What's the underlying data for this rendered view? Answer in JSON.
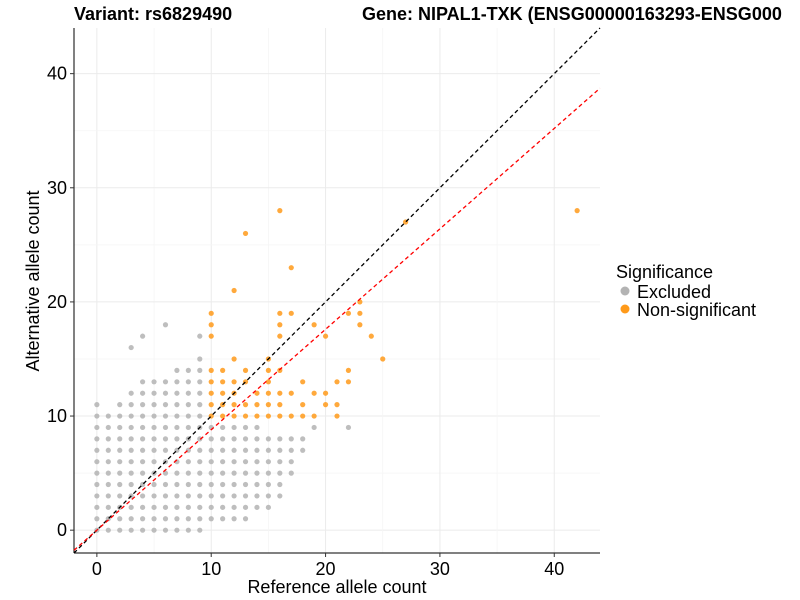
{
  "chart_data": {
    "type": "scatter",
    "title_left": "Variant: rs6829490",
    "title_right": "Gene: NIPAL1-TXK (ENSG00000163293-ENSG000",
    "xlabel": "Reference allele count",
    "ylabel": "Alternative allele count",
    "xlim": [
      -2,
      44
    ],
    "ylim": [
      -2,
      44
    ],
    "xticks": [
      0,
      10,
      20,
      30,
      40
    ],
    "yticks": [
      0,
      10,
      20,
      30,
      40
    ],
    "grid": true,
    "legend": {
      "title": "Significance",
      "placement": "right",
      "entries": [
        {
          "label": "Excluded",
          "color": "#b3b3b3"
        },
        {
          "label": "Non-significant",
          "color": "#ff9a1a"
        }
      ]
    },
    "reference_lines": [
      {
        "name": "y = x",
        "slope": 1.0,
        "intercept": 0,
        "color": "#000000",
        "dash": true
      },
      {
        "name": "fitted",
        "slope": 0.88,
        "intercept": 0,
        "color": "#ff0000",
        "dash": true
      }
    ],
    "series": [
      {
        "name": "Excluded",
        "color": "#b3b3b3",
        "points": [
          [
            0,
            11
          ],
          [
            0,
            10
          ],
          [
            0,
            9
          ],
          [
            0,
            8
          ],
          [
            0,
            7
          ],
          [
            0,
            6
          ],
          [
            0,
            5
          ],
          [
            0,
            4
          ],
          [
            0,
            3
          ],
          [
            0,
            2
          ],
          [
            0,
            1
          ],
          [
            0,
            0
          ],
          [
            1,
            10
          ],
          [
            1,
            9
          ],
          [
            1,
            8
          ],
          [
            1,
            7
          ],
          [
            1,
            6
          ],
          [
            1,
            5
          ],
          [
            1,
            4
          ],
          [
            1,
            3
          ],
          [
            1,
            2
          ],
          [
            1,
            1
          ],
          [
            1,
            0
          ],
          [
            2,
            11
          ],
          [
            2,
            10
          ],
          [
            2,
            9
          ],
          [
            2,
            8
          ],
          [
            2,
            7
          ],
          [
            2,
            6
          ],
          [
            2,
            5
          ],
          [
            2,
            4
          ],
          [
            2,
            3
          ],
          [
            2,
            2
          ],
          [
            2,
            1
          ],
          [
            2,
            0
          ],
          [
            3,
            16
          ],
          [
            3,
            12
          ],
          [
            3,
            11
          ],
          [
            3,
            10
          ],
          [
            3,
            9
          ],
          [
            3,
            8
          ],
          [
            3,
            7
          ],
          [
            3,
            6
          ],
          [
            3,
            5
          ],
          [
            3,
            4
          ],
          [
            3,
            3
          ],
          [
            3,
            2
          ],
          [
            3,
            1
          ],
          [
            3,
            0
          ],
          [
            4,
            17
          ],
          [
            4,
            13
          ],
          [
            4,
            12
          ],
          [
            4,
            11
          ],
          [
            4,
            10
          ],
          [
            4,
            9
          ],
          [
            4,
            8
          ],
          [
            4,
            7
          ],
          [
            4,
            6
          ],
          [
            4,
            5
          ],
          [
            4,
            4
          ],
          [
            4,
            3
          ],
          [
            4,
            2
          ],
          [
            4,
            1
          ],
          [
            4,
            0
          ],
          [
            5,
            13
          ],
          [
            5,
            12
          ],
          [
            5,
            11
          ],
          [
            5,
            10
          ],
          [
            5,
            9
          ],
          [
            5,
            8
          ],
          [
            5,
            7
          ],
          [
            5,
            6
          ],
          [
            5,
            5
          ],
          [
            5,
            4
          ],
          [
            5,
            3
          ],
          [
            5,
            2
          ],
          [
            5,
            1
          ],
          [
            5,
            0
          ],
          [
            6,
            18
          ],
          [
            6,
            13
          ],
          [
            6,
            12
          ],
          [
            6,
            11
          ],
          [
            6,
            10
          ],
          [
            6,
            9
          ],
          [
            6,
            8
          ],
          [
            6,
            7
          ],
          [
            6,
            6
          ],
          [
            6,
            5
          ],
          [
            6,
            4
          ],
          [
            6,
            3
          ],
          [
            6,
            2
          ],
          [
            6,
            1
          ],
          [
            6,
            0
          ],
          [
            7,
            14
          ],
          [
            7,
            13
          ],
          [
            7,
            12
          ],
          [
            7,
            11
          ],
          [
            7,
            10
          ],
          [
            7,
            9
          ],
          [
            7,
            8
          ],
          [
            7,
            7
          ],
          [
            7,
            6
          ],
          [
            7,
            5
          ],
          [
            7,
            4
          ],
          [
            7,
            3
          ],
          [
            7,
            2
          ],
          [
            7,
            1
          ],
          [
            7,
            0
          ],
          [
            8,
            14
          ],
          [
            8,
            13
          ],
          [
            8,
            12
          ],
          [
            8,
            11
          ],
          [
            8,
            10
          ],
          [
            8,
            9
          ],
          [
            8,
            8
          ],
          [
            8,
            7
          ],
          [
            8,
            6
          ],
          [
            8,
            5
          ],
          [
            8,
            4
          ],
          [
            8,
            3
          ],
          [
            8,
            2
          ],
          [
            8,
            1
          ],
          [
            8,
            0
          ],
          [
            9,
            17
          ],
          [
            9,
            15
          ],
          [
            9,
            14
          ],
          [
            9,
            13
          ],
          [
            9,
            12
          ],
          [
            9,
            11
          ],
          [
            9,
            10
          ],
          [
            9,
            9
          ],
          [
            9,
            8
          ],
          [
            9,
            7
          ],
          [
            9,
            6
          ],
          [
            9,
            5
          ],
          [
            9,
            4
          ],
          [
            9,
            3
          ],
          [
            9,
            2
          ],
          [
            9,
            1
          ],
          [
            9,
            0
          ],
          [
            10,
            9
          ],
          [
            10,
            8
          ],
          [
            10,
            7
          ],
          [
            10,
            6
          ],
          [
            10,
            5
          ],
          [
            10,
            4
          ],
          [
            10,
            3
          ],
          [
            10,
            2
          ],
          [
            10,
            1
          ],
          [
            11,
            9
          ],
          [
            11,
            8
          ],
          [
            11,
            7
          ],
          [
            11,
            6
          ],
          [
            11,
            5
          ],
          [
            11,
            4
          ],
          [
            11,
            3
          ],
          [
            11,
            2
          ],
          [
            11,
            1
          ],
          [
            12,
            9
          ],
          [
            12,
            8
          ],
          [
            12,
            7
          ],
          [
            12,
            6
          ],
          [
            12,
            5
          ],
          [
            12,
            4
          ],
          [
            12,
            3
          ],
          [
            12,
            2
          ],
          [
            12,
            1
          ],
          [
            13,
            9
          ],
          [
            13,
            8
          ],
          [
            13,
            7
          ],
          [
            13,
            6
          ],
          [
            13,
            5
          ],
          [
            13,
            4
          ],
          [
            13,
            3
          ],
          [
            13,
            2
          ],
          [
            14,
            9
          ],
          [
            14,
            8
          ],
          [
            14,
            7
          ],
          [
            14,
            6
          ],
          [
            14,
            5
          ],
          [
            14,
            4
          ],
          [
            14,
            3
          ],
          [
            14,
            2
          ],
          [
            15,
            8
          ],
          [
            15,
            7
          ],
          [
            15,
            6
          ],
          [
            15,
            5
          ],
          [
            15,
            4
          ],
          [
            15,
            3
          ],
          [
            15,
            2
          ],
          [
            16,
            8
          ],
          [
            16,
            7
          ],
          [
            16,
            6
          ],
          [
            16,
            5
          ],
          [
            16,
            4
          ],
          [
            16,
            3
          ],
          [
            17,
            8
          ],
          [
            17,
            7
          ],
          [
            17,
            6
          ],
          [
            17,
            5
          ],
          [
            18,
            8
          ],
          [
            18,
            7
          ],
          [
            19,
            9
          ],
          [
            22,
            9
          ],
          [
            13,
            1
          ]
        ]
      },
      {
        "name": "Non-significant",
        "color": "#ff9a1a",
        "points": [
          [
            10,
            19
          ],
          [
            10,
            18
          ],
          [
            10,
            17
          ],
          [
            10,
            14
          ],
          [
            10,
            13
          ],
          [
            10,
            12
          ],
          [
            10,
            11
          ],
          [
            10,
            10
          ],
          [
            11,
            14
          ],
          [
            11,
            13
          ],
          [
            11,
            12
          ],
          [
            11,
            11
          ],
          [
            11,
            10
          ],
          [
            12,
            21
          ],
          [
            12,
            15
          ],
          [
            12,
            13
          ],
          [
            12,
            12
          ],
          [
            12,
            11
          ],
          [
            12,
            10
          ],
          [
            13,
            26
          ],
          [
            13,
            14
          ],
          [
            13,
            13
          ],
          [
            13,
            11
          ],
          [
            13,
            10
          ],
          [
            14,
            12
          ],
          [
            14,
            11
          ],
          [
            14,
            10
          ],
          [
            15,
            15
          ],
          [
            15,
            14
          ],
          [
            15,
            13
          ],
          [
            15,
            12
          ],
          [
            15,
            11
          ],
          [
            15,
            10
          ],
          [
            16,
            28
          ],
          [
            16,
            19
          ],
          [
            16,
            18
          ],
          [
            16,
            17
          ],
          [
            16,
            14
          ],
          [
            16,
            12
          ],
          [
            16,
            11
          ],
          [
            16,
            10
          ],
          [
            17,
            23
          ],
          [
            17,
            19
          ],
          [
            17,
            12
          ],
          [
            17,
            10
          ],
          [
            18,
            13
          ],
          [
            18,
            11
          ],
          [
            18,
            10
          ],
          [
            19,
            18
          ],
          [
            19,
            12
          ],
          [
            19,
            10
          ],
          [
            20,
            17
          ],
          [
            20,
            12
          ],
          [
            20,
            11
          ],
          [
            21,
            13
          ],
          [
            21,
            11
          ],
          [
            21,
            10
          ],
          [
            22,
            19
          ],
          [
            22,
            14
          ],
          [
            22,
            13
          ],
          [
            23,
            20
          ],
          [
            23,
            19
          ],
          [
            23,
            18
          ],
          [
            24,
            17
          ],
          [
            25,
            15
          ],
          [
            27,
            27
          ],
          [
            42,
            28
          ]
        ]
      }
    ]
  }
}
